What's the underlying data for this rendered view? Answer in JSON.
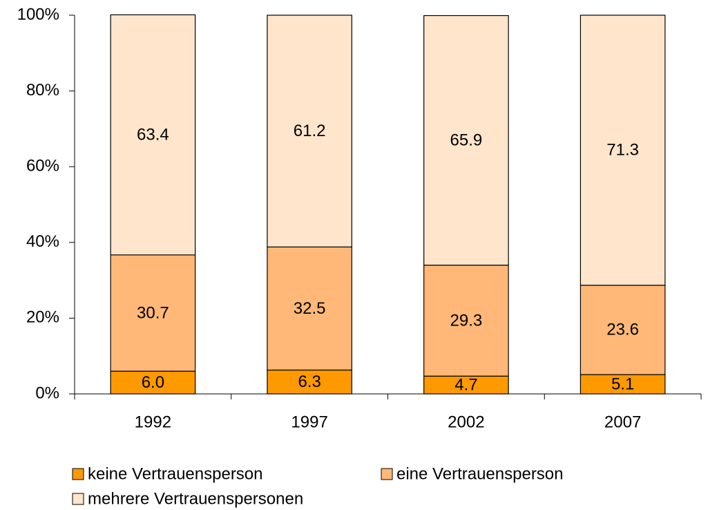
{
  "chart_data": {
    "type": "stacked_bar",
    "categories": [
      "1992",
      "1997",
      "2002",
      "2007"
    ],
    "series": [
      {
        "name": "keine Vertrauensperson",
        "color": "#ff9900",
        "values": [
          6.0,
          6.3,
          4.7,
          5.1
        ],
        "value_labels": [
          "6.0",
          "6.3",
          "4.7",
          "5.1"
        ]
      },
      {
        "name": "eine Vertrauensperson",
        "color": "#ffb877",
        "values": [
          30.7,
          32.5,
          29.3,
          23.6
        ]
      },
      {
        "name": "mehrere Vertrauenspersonen",
        "color": "#ffe5cc",
        "values": [
          63.4,
          61.2,
          65.9,
          71.3
        ]
      }
    ],
    "ylim": [
      0,
      100
    ],
    "yticks": [
      {
        "value": 0,
        "label": "0%"
      },
      {
        "value": 20,
        "label": "20%"
      },
      {
        "value": 40,
        "label": "40%"
      },
      {
        "value": 60,
        "label": "60%"
      },
      {
        "value": 80,
        "label": "80%"
      },
      {
        "value": 100,
        "label": "100%"
      }
    ],
    "grid": false,
    "legend": "bottom"
  }
}
